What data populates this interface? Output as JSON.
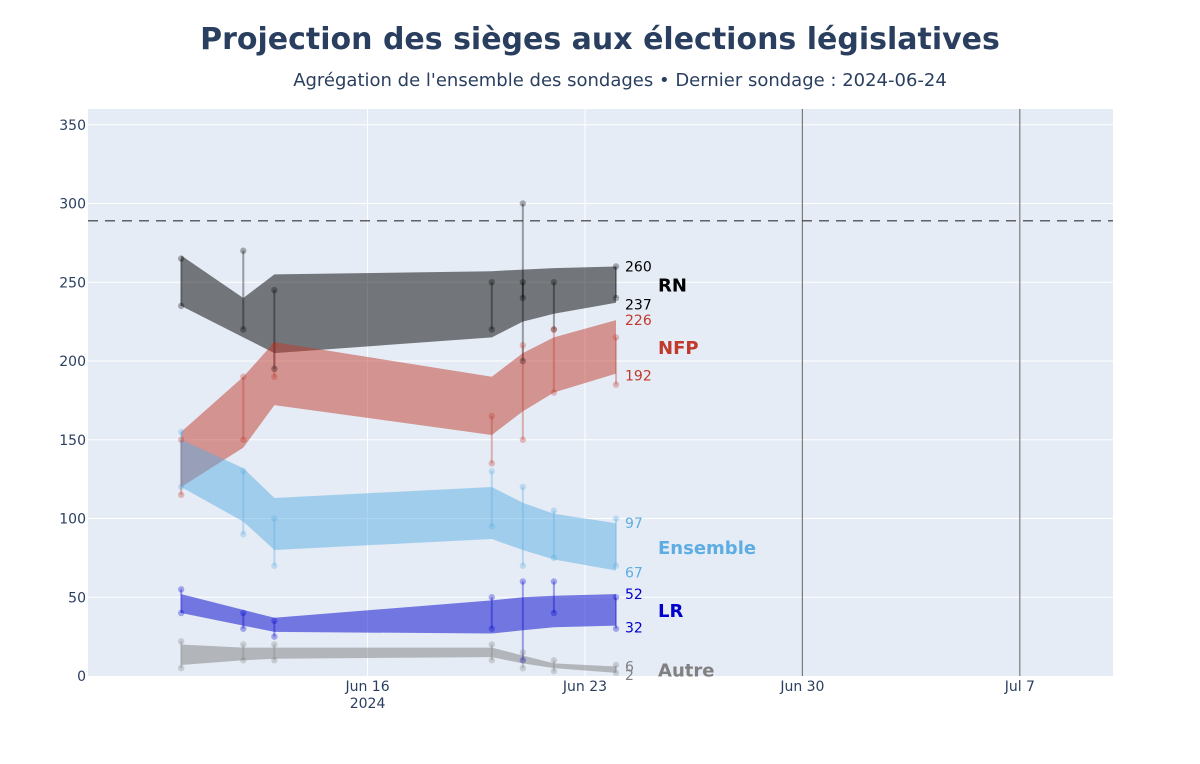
{
  "chart_data": {
    "type": "area",
    "title": "Projection des sièges aux élections législatives",
    "subtitle": "Agrégation de l'ensemble des sondages • Dernier sondage : 2024-06-24",
    "xlabel": "",
    "ylabel": "",
    "x_range": [
      "2024-06-07",
      "2024-07-10"
    ],
    "ylim": [
      0,
      360
    ],
    "y_ticks": [
      0,
      50,
      100,
      150,
      200,
      250,
      300,
      350
    ],
    "x_ticks": [
      {
        "date": "2024-06-16",
        "label": "Jun 16",
        "sublabel": "2024"
      },
      {
        "date": "2024-06-23",
        "label": "Jun 23",
        "sublabel": ""
      },
      {
        "date": "2024-06-30",
        "label": "Jun 30",
        "sublabel": ""
      },
      {
        "date": "2024-07-07",
        "label": "Jul 7",
        "sublabel": ""
      }
    ],
    "majority_line": 289,
    "event_lines": [
      "2024-06-30",
      "2024-07-07"
    ],
    "grid": true,
    "band_dates": [
      "2024-06-10",
      "2024-06-12",
      "2024-06-13",
      "2024-06-20",
      "2024-06-21",
      "2024-06-22",
      "2024-06-24"
    ],
    "series": [
      {
        "name": "RN",
        "color": "#000000",
        "high": [
          267,
          240,
          255,
          257,
          258,
          259,
          260
        ],
        "low": [
          235,
          215,
          205,
          215,
          225,
          230,
          237
        ],
        "end_high": "260",
        "end_low": "237",
        "polls": [
          [
            [
              "2024-06-10",
              235,
              265
            ]
          ],
          [
            [
              "2024-06-12",
              220,
              270
            ]
          ],
          [
            [
              "2024-06-13",
              195,
              245
            ]
          ],
          [
            [
              "2024-06-20",
              220,
              250
            ]
          ],
          [
            [
              "2024-06-21",
              200,
              300
            ],
            [
              "2024-06-21",
              240,
              250
            ]
          ],
          [
            [
              "2024-06-22",
              220,
              250
            ]
          ],
          [
            [
              "2024-06-24",
              240,
              260
            ]
          ]
        ]
      },
      {
        "name": "NFP",
        "color": "#c0392b",
        "high": [
          155,
          190,
          212,
          190,
          205,
          215,
          226
        ],
        "low": [
          120,
          145,
          172,
          153,
          168,
          180,
          192
        ],
        "end_high": "226",
        "end_low": "192",
        "polls": [
          [
            [
              "2024-06-10",
              115,
              150
            ]
          ],
          [
            [
              "2024-06-12",
              150,
              190
            ]
          ],
          [
            [
              "2024-06-13",
              190,
              210
            ]
          ],
          [
            [
              "2024-06-20",
              135,
              165
            ]
          ],
          [
            [
              "2024-06-21",
              150,
              210
            ]
          ],
          [
            [
              "2024-06-22",
              180,
              220
            ]
          ],
          [
            [
              "2024-06-24",
              185,
              215
            ]
          ]
        ]
      },
      {
        "name": "Ensemble",
        "color": "#5dade2",
        "high": [
          150,
          132,
          113,
          120,
          110,
          103,
          97
        ],
        "low": [
          120,
          98,
          80,
          87,
          80,
          74,
          67
        ],
        "end_high": "97",
        "end_low": "67",
        "polls": [
          [
            [
              "2024-06-10",
              120,
              155
            ]
          ],
          [
            [
              "2024-06-12",
              90,
              130
            ]
          ],
          [
            [
              "2024-06-13",
              70,
              100
            ]
          ],
          [
            [
              "2024-06-20",
              95,
              130
            ]
          ],
          [
            [
              "2024-06-21",
              70,
              120
            ]
          ],
          [
            [
              "2024-06-22",
              75,
              105
            ]
          ],
          [
            [
              "2024-06-24",
              70,
              100
            ]
          ]
        ]
      },
      {
        "name": "LR",
        "color": "#0000cc",
        "high": [
          52,
          42,
          37,
          48,
          50,
          51,
          52
        ],
        "low": [
          40,
          32,
          28,
          27,
          29,
          31,
          32
        ],
        "end_high": "52",
        "end_low": "32",
        "polls": [
          [
            [
              "2024-06-10",
              40,
              55
            ]
          ],
          [
            [
              "2024-06-12",
              30,
              40
            ]
          ],
          [
            [
              "2024-06-13",
              25,
              35
            ]
          ],
          [
            [
              "2024-06-20",
              30,
              50
            ]
          ],
          [
            [
              "2024-06-21",
              10,
              60
            ]
          ],
          [
            [
              "2024-06-22",
              40,
              60
            ]
          ],
          [
            [
              "2024-06-24",
              30,
              50
            ]
          ]
        ]
      },
      {
        "name": "Autre",
        "color": "#808080",
        "high": [
          20,
          18,
          18,
          18,
          13,
          8,
          6
        ],
        "low": [
          7,
          10,
          11,
          12,
          8,
          5,
          2
        ],
        "end_high": "6",
        "end_low": "2",
        "polls": [
          [
            [
              "2024-06-10",
              5,
              22
            ]
          ],
          [
            [
              "2024-06-12",
              10,
              20
            ]
          ],
          [
            [
              "2024-06-13",
              10,
              20
            ]
          ],
          [
            [
              "2024-06-20",
              10,
              20
            ]
          ],
          [
            [
              "2024-06-21",
              5,
              15
            ]
          ],
          [
            [
              "2024-06-22",
              3,
              10
            ]
          ],
          [
            [
              "2024-06-24",
              2,
              7
            ]
          ]
        ]
      }
    ]
  }
}
